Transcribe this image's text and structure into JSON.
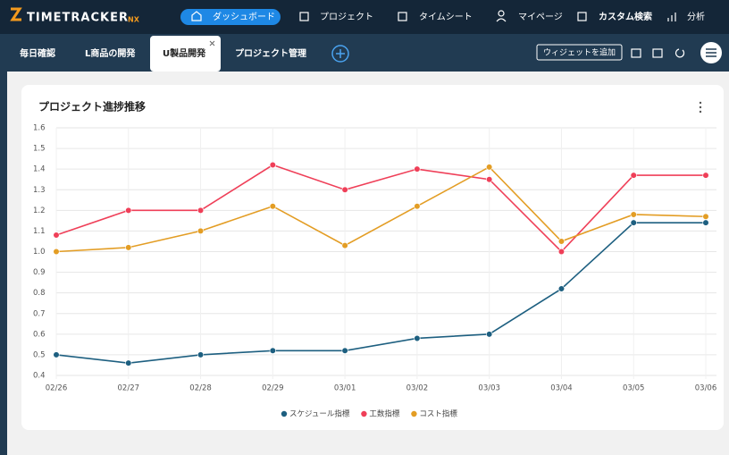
{
  "header": {
    "logo": "TIMETRACKER",
    "logo_suffix": "NX",
    "nav": [
      "ダッシュボード",
      "プロジェクト",
      "タイムシート",
      "マイページ",
      "カスタム検索",
      "分析"
    ]
  },
  "tabs": {
    "items": [
      "毎日確認",
      "L商品の開発",
      "U製品開発",
      "プロジェクト管理"
    ],
    "add_widget": "ウィジェットを追加"
  },
  "chart_data": {
    "type": "line",
    "title": "プロジェクト進捗推移",
    "categories": [
      "02/26",
      "02/27",
      "02/28",
      "02/29",
      "03/01",
      "03/02",
      "03/03",
      "03/04",
      "03/05",
      "03/06"
    ],
    "series": [
      {
        "name": "スケジュール指標",
        "color": "#1d5f80",
        "values": [
          0.5,
          0.46,
          0.5,
          0.52,
          0.52,
          0.58,
          0.6,
          0.82,
          1.14,
          1.14
        ]
      },
      {
        "name": "工数指標",
        "color": "#ef3f58",
        "values": [
          1.08,
          1.2,
          1.2,
          1.42,
          1.3,
          1.4,
          1.35,
          1.0,
          1.37,
          1.37
        ]
      },
      {
        "name": "コスト指標",
        "color": "#e39d24",
        "values": [
          1.0,
          1.02,
          1.1,
          1.22,
          1.03,
          1.22,
          1.41,
          1.05,
          1.18,
          1.17
        ]
      }
    ],
    "ylim": [
      0.4,
      1.6
    ],
    "yticks": [
      0.4,
      0.5,
      0.6,
      0.7,
      0.8,
      0.9,
      {
        "value": 1,
        "label": "1.0"
      },
      1.1,
      1.2,
      1.3,
      1.4,
      1.5,
      1.6
    ],
    "grid": true,
    "legend": "bottom"
  }
}
